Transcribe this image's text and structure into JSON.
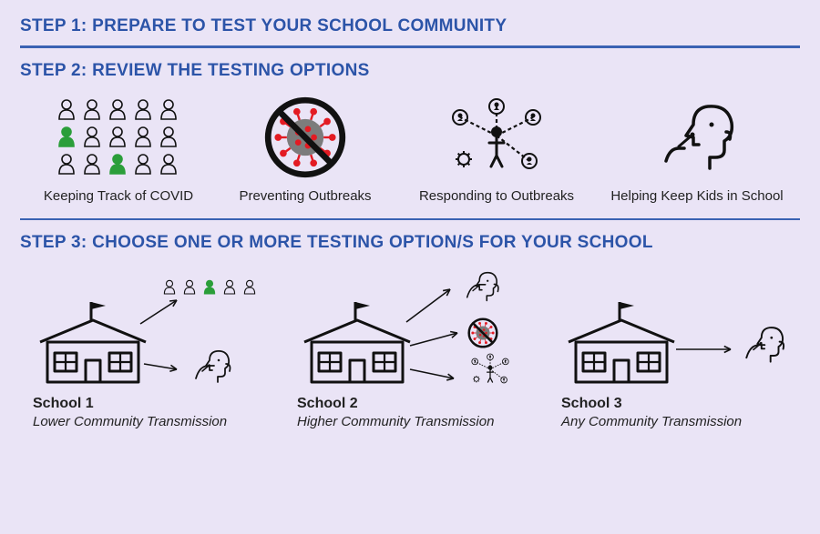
{
  "colors": {
    "background": "#eae4f6",
    "heading": "#2c54a8",
    "divider": "#3a62b3",
    "text": "#222222",
    "accent_green": "#2b9e3a",
    "virus_red": "#e31b23",
    "virus_gray": "#7c7c7c",
    "outline": "#111111"
  },
  "typography": {
    "heading_fontsize": 19,
    "label_fontsize": 15,
    "school_name_fontsize": 16
  },
  "step1": {
    "title": "STEP 1: PREPARE TO TEST YOUR SCHOOL COMMUNITY"
  },
  "step2": {
    "title": "STEP 2: REVIEW THE TESTING OPTIONS",
    "options": [
      {
        "label": "Keeping Track of COVID",
        "icon": "people-track"
      },
      {
        "label": "Preventing Outbreaks",
        "icon": "virus-no"
      },
      {
        "label": "Responding to Outbreaks",
        "icon": "contact-trace"
      },
      {
        "label": "Helping Keep Kids in School",
        "icon": "swab-test"
      }
    ]
  },
  "step3": {
    "title": "STEP 3: CHOOSE ONE OR MORE TESTING OPTION/S FOR YOUR SCHOOL",
    "schools": [
      {
        "name": "School 1",
        "subtitle": "Lower Community Transmission",
        "targets": [
          "people-small",
          "swab-small"
        ]
      },
      {
        "name": "School 2",
        "subtitle": "Higher Community Transmission",
        "targets": [
          "swab-small",
          "virus-no-small",
          "contact-trace-small"
        ]
      },
      {
        "name": "School 3",
        "subtitle": "Any Community Transmission",
        "targets": [
          "swab-small"
        ]
      }
    ]
  }
}
